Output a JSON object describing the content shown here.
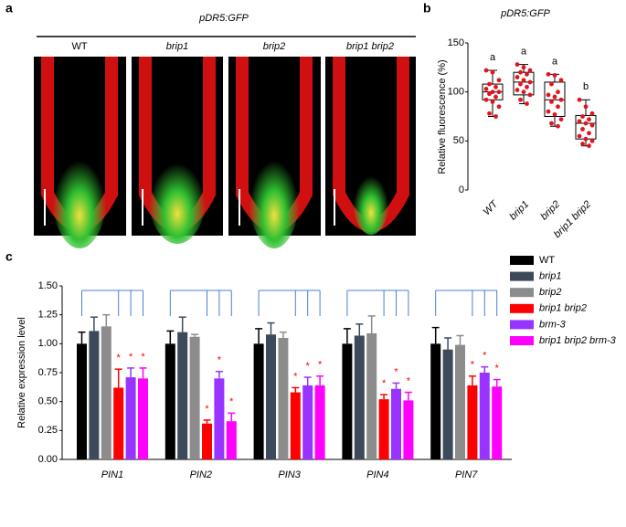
{
  "panels": {
    "a": "a",
    "b": "b",
    "c": "c"
  },
  "images": {
    "title": "pDR5:GFP",
    "labels": [
      "WT",
      "brip1",
      "brip2",
      "brip1 brip2"
    ]
  },
  "chart_data": [
    {
      "type": "box",
      "title": "pDR5:GFP",
      "y_label": "Relative fluorescence (%)",
      "categories": [
        "WT",
        "brip1",
        "brip2",
        "brip1 brip2"
      ],
      "values": [
        [
          122,
          120,
          112,
          108,
          105,
          103,
          100,
          100,
          98,
          95,
          92,
          90,
          85,
          78,
          75
        ],
        [
          128,
          125,
          122,
          120,
          118,
          115,
          112,
          110,
          108,
          105,
          102,
          100,
          97,
          92,
          88
        ],
        [
          118,
          117,
          112,
          108,
          100,
          97,
          95,
          92,
          90,
          85,
          80,
          77,
          72,
          68,
          65
        ],
        [
          92,
          85,
          78,
          75,
          72,
          70,
          68,
          66,
          62,
          58,
          55,
          52,
          50,
          47,
          45
        ]
      ],
      "q1": [
        92,
        97,
        75,
        52
      ],
      "median": [
        100,
        110,
        92,
        68
      ],
      "q3": [
        108,
        120,
        110,
        76
      ],
      "whisker_low": [
        75,
        88,
        65,
        45
      ],
      "whisker_high": [
        122,
        128,
        118,
        92
      ],
      "group_labels": [
        "a",
        "a",
        "a",
        "b"
      ],
      "color": "#e0141e",
      "ylim": [
        0,
        150
      ],
      "yticks": [
        0,
        50,
        100,
        150
      ]
    },
    {
      "type": "bar",
      "y_label": "Relative expression level",
      "annotation": "*",
      "categories": [
        "PIN1",
        "PIN2",
        "PIN3",
        "PIN4",
        "PIN7"
      ],
      "series": [
        {
          "name": "WT",
          "color": "#000000",
          "values": [
            1.0,
            1.0,
            1.0,
            1.0,
            1.0
          ],
          "errors": [
            0.1,
            0.11,
            0.13,
            0.13,
            0.14
          ]
        },
        {
          "name": "brip1",
          "color": "#3d4a5c",
          "values": [
            1.11,
            1.1,
            1.08,
            1.07,
            0.95
          ],
          "errors": [
            0.12,
            0.13,
            0.1,
            0.1,
            0.1
          ]
        },
        {
          "name": "brip2",
          "color": "#8c8c8c",
          "values": [
            1.15,
            1.06,
            1.05,
            1.09,
            0.99
          ],
          "errors": [
            0.1,
            0.02,
            0.05,
            0.15,
            0.08
          ]
        },
        {
          "name": "brip1 brip2",
          "color": "#ff0000",
          "values": [
            0.62,
            0.31,
            0.58,
            0.52,
            0.64
          ],
          "errors": [
            0.16,
            0.03,
            0.04,
            0.04,
            0.08
          ]
        },
        {
          "name": "brm-3",
          "color": "#9933ff",
          "values": [
            0.71,
            0.7,
            0.64,
            0.61,
            0.75
          ],
          "errors": [
            0.08,
            0.06,
            0.07,
            0.05,
            0.05
          ]
        },
        {
          "name": "brip1 brip2 brm-3",
          "color": "#ff00ff",
          "values": [
            0.7,
            0.33,
            0.64,
            0.51,
            0.63
          ],
          "errors": [
            0.09,
            0.07,
            0.08,
            0.07,
            0.06
          ]
        }
      ],
      "ylim": [
        0,
        1.5
      ],
      "yticks": [
        {
          "value": 0,
          "label": "0.00"
        },
        {
          "value": 0.25,
          "label": "0.25"
        },
        {
          "value": 0.5,
          "label": "0.50"
        },
        {
          "value": 0.75,
          "label": "0.75"
        },
        {
          "value": 1,
          "label": "1.00"
        },
        {
          "value": 1.25,
          "label": "1.25"
        },
        {
          "value": 1.5,
          "label": "1.50"
        }
      ]
    }
  ]
}
